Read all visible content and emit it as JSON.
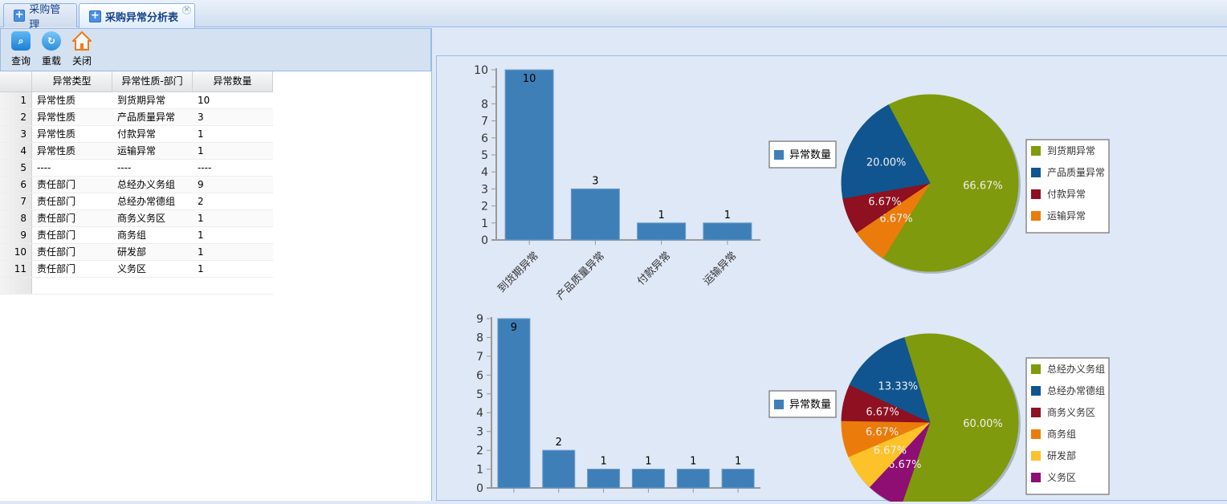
{
  "tabs": [
    {
      "label": "采购管理",
      "active": false
    },
    {
      "label": "采购异常分析表",
      "active": true,
      "close": "×"
    }
  ],
  "toolbar": {
    "query": "查询",
    "reload": "重载",
    "close": "关闭"
  },
  "grid": {
    "columns": [
      "异常类型",
      "异常性质-部门",
      "异常数量"
    ],
    "rows": [
      [
        "1",
        "异常性质",
        "到货期异常",
        "10"
      ],
      [
        "2",
        "异常性质",
        "产品质量异常",
        "3"
      ],
      [
        "3",
        "异常性质",
        "付款异常",
        "1"
      ],
      [
        "4",
        "异常性质",
        "运输异常",
        "1"
      ],
      [
        "5",
        "----",
        "----",
        "----"
      ],
      [
        "6",
        "责任部门",
        "总经办义务组",
        "9"
      ],
      [
        "7",
        "责任部门",
        "总经办常德组",
        "2"
      ],
      [
        "8",
        "责任部门",
        "商务义务区",
        "1"
      ],
      [
        "9",
        "责任部门",
        "商务组",
        "1"
      ],
      [
        "10",
        "责任部门",
        "研发部",
        "1"
      ],
      [
        "11",
        "责任部门",
        "义务区",
        "1"
      ]
    ]
  },
  "chart_data": [
    {
      "type": "bar",
      "legend": "异常数量",
      "legend_position": "right",
      "categories": [
        "到货期异常",
        "产品质量异常",
        "付款异常",
        "运输异常"
      ],
      "values": [
        10,
        3,
        1,
        1
      ],
      "ylim": [
        0,
        10
      ],
      "yticks": [
        "0",
        "1",
        "2",
        "3",
        "4",
        "5",
        "6",
        "7",
        "8",
        "",
        "10"
      ],
      "color": "#3f7fb8"
    },
    {
      "type": "pie",
      "categories": [
        "到货期异常",
        "产品质量异常",
        "付款异常",
        "运输异常"
      ],
      "values": [
        10,
        3,
        1,
        1
      ],
      "labels": [
        "66.67%",
        "20.00%",
        "6.67%",
        "6.67%"
      ],
      "colors": [
        "#7f9a0c",
        "#10558f",
        "#8f1020",
        "#eb7c0b"
      ],
      "legend_position": "right"
    },
    {
      "type": "bar",
      "legend": "异常数量",
      "legend_position": "right",
      "categories": [
        "总经办义务组",
        "总经办常德组",
        "商务义务区",
        "商务组",
        "研发部",
        "义务区"
      ],
      "values": [
        9,
        2,
        1,
        1,
        1,
        1
      ],
      "ylim": [
        0,
        9
      ],
      "yticks": [
        "0",
        "1",
        "2",
        "3",
        "4",
        "5",
        "6",
        "7",
        "8",
        "9"
      ],
      "color": "#3f7fb8"
    },
    {
      "type": "pie",
      "categories": [
        "总经办义务组",
        "总经办常德组",
        "商务义务区",
        "商务组",
        "研发部",
        "义务区"
      ],
      "values": [
        9,
        2,
        1,
        1,
        1,
        1
      ],
      "labels": [
        "60.00%",
        "13.33%",
        "6.67%",
        "6.67%",
        "6.67%",
        "6.67%"
      ],
      "colors": [
        "#7f9a0c",
        "#10558f",
        "#8f1020",
        "#eb7c0b",
        "#fdc22a",
        "#8e0e73"
      ],
      "legend_position": "right"
    }
  ]
}
